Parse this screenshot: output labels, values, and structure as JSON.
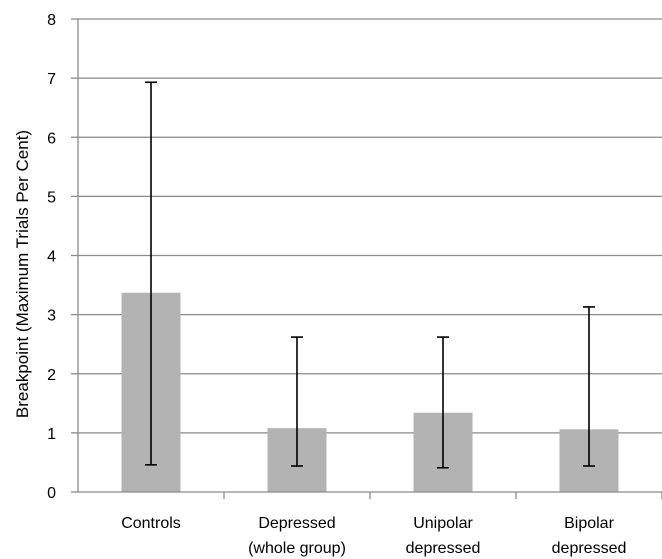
{
  "chart_data": {
    "type": "bar",
    "title": "",
    "xlabel": "",
    "ylabel": "Breakpoint (Maximum Trials Per Cent)",
    "ylim": [
      0,
      8
    ],
    "yticks": [
      "0",
      "1",
      "2",
      "3",
      "4",
      "5",
      "6",
      "7",
      "8"
    ],
    "grid": true,
    "categories": [
      [
        "Controls"
      ],
      [
        "Depressed",
        "(whole group)"
      ],
      [
        "Unipolar",
        "depressed"
      ],
      [
        "Bipolar",
        "depressed"
      ]
    ],
    "values": [
      3.37,
      1.08,
      1.34,
      1.06
    ],
    "error_low": [
      0.46,
      0.44,
      0.41,
      0.44
    ],
    "error_high": [
      6.93,
      2.62,
      2.62,
      3.13
    ],
    "colors": {
      "bar": "#b3b3b3",
      "grid": "#8a8a8a",
      "axis": "#8a8a8a",
      "error": "#000000"
    }
  }
}
